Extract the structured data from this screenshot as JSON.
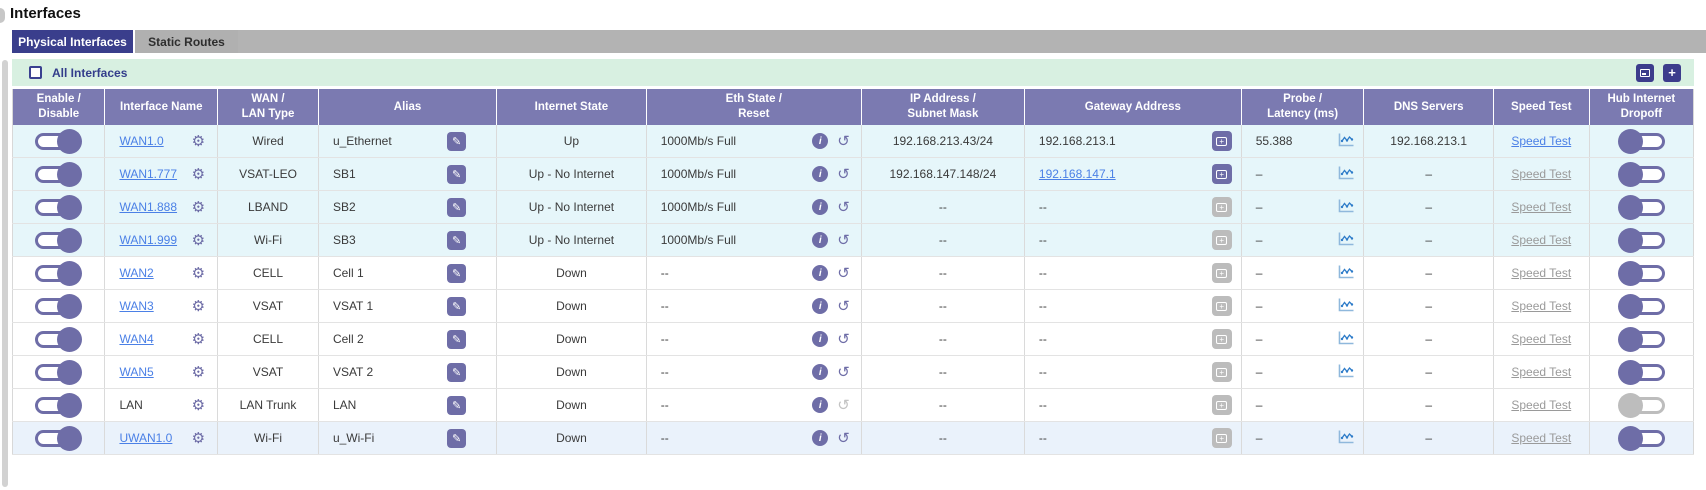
{
  "page": {
    "title": "Interfaces"
  },
  "tabs": [
    {
      "label": "Physical Interfaces",
      "active": true
    },
    {
      "label": "Static Routes",
      "active": false
    }
  ],
  "toolbar": {
    "all_interfaces_label": "All Interfaces",
    "checkbox_checked": false,
    "buttons": [
      {
        "name": "gallery-view-button",
        "icon": "image-icon"
      },
      {
        "name": "add-interface-button",
        "icon": "plus-icon",
        "glyph": "+"
      }
    ]
  },
  "colors": {
    "active_tab": "#3a3e8c",
    "header_purple": "#7b7ab1",
    "accent_purple": "#6e6da7",
    "toolbar_green": "#d8f0e1",
    "link_blue": "#4b80e6",
    "row_cyan": "#e6f6fa",
    "row_blue": "#eaf2fb"
  },
  "table": {
    "speed_test_label": "Speed Test",
    "columns": [
      "Enable /\nDisable",
      "Interface Name",
      "WAN /\nLAN Type",
      "Alias",
      "Internet State",
      "Eth State /\nReset",
      "IP Address /\nSubnet Mask",
      "Gateway Address",
      "Probe /\nLatency (ms)",
      "DNS Servers",
      "Speed Test",
      "Hub Internet\nDropoff"
    ],
    "rows": [
      {
        "enable_on": true,
        "name": "WAN1.0",
        "name_link": true,
        "type": "Wired",
        "alias": "u_Ethernet",
        "internet_state": "Up",
        "eth_state": "1000Mb/s Full",
        "reset_enabled": true,
        "ip": "192.168.213.43/24",
        "gateway": "192.168.213.1",
        "gateway_link": false,
        "gateway_btn_enabled": true,
        "probe": "55.388",
        "probe_chart": true,
        "dns": "192.168.213.1",
        "speed_enabled": true,
        "hub_on": false,
        "hub_enabled": true,
        "bg": "cyan"
      },
      {
        "enable_on": true,
        "name": "WAN1.777",
        "name_link": true,
        "type": "VSAT-LEO",
        "alias": "SB1",
        "internet_state": "Up - No Internet",
        "eth_state": "1000Mb/s Full",
        "reset_enabled": true,
        "ip": "192.168.147.148/24",
        "gateway": "192.168.147.1",
        "gateway_link": true,
        "gateway_btn_enabled": true,
        "probe": "–",
        "probe_chart": true,
        "dns": "–",
        "speed_enabled": false,
        "hub_on": false,
        "hub_enabled": true,
        "bg": "cyan"
      },
      {
        "enable_on": true,
        "name": "WAN1.888",
        "name_link": true,
        "type": "LBAND",
        "alias": "SB2",
        "internet_state": "Up - No Internet",
        "eth_state": "1000Mb/s Full",
        "reset_enabled": true,
        "ip": "--",
        "gateway": "--",
        "gateway_link": false,
        "gateway_btn_enabled": false,
        "probe": "–",
        "probe_chart": true,
        "dns": "–",
        "speed_enabled": false,
        "hub_on": false,
        "hub_enabled": true,
        "bg": "cyan"
      },
      {
        "enable_on": true,
        "name": "WAN1.999",
        "name_link": true,
        "type": "Wi-Fi",
        "alias": "SB3",
        "internet_state": "Up - No Internet",
        "eth_state": "1000Mb/s Full",
        "reset_enabled": true,
        "ip": "--",
        "gateway": "--",
        "gateway_link": false,
        "gateway_btn_enabled": false,
        "probe": "–",
        "probe_chart": true,
        "dns": "–",
        "speed_enabled": false,
        "hub_on": false,
        "hub_enabled": true,
        "bg": "cyan"
      },
      {
        "enable_on": true,
        "name": "WAN2",
        "name_link": true,
        "type": "CELL",
        "alias": "Cell 1",
        "internet_state": "Down",
        "eth_state": "--",
        "reset_enabled": true,
        "ip": "--",
        "gateway": "--",
        "gateway_link": false,
        "gateway_btn_enabled": false,
        "probe": "–",
        "probe_chart": true,
        "dns": "–",
        "speed_enabled": false,
        "hub_on": false,
        "hub_enabled": true,
        "bg": "white"
      },
      {
        "enable_on": true,
        "name": "WAN3",
        "name_link": true,
        "type": "VSAT",
        "alias": "VSAT 1",
        "internet_state": "Down",
        "eth_state": "--",
        "reset_enabled": true,
        "ip": "--",
        "gateway": "--",
        "gateway_link": false,
        "gateway_btn_enabled": false,
        "probe": "–",
        "probe_chart": true,
        "dns": "–",
        "speed_enabled": false,
        "hub_on": false,
        "hub_enabled": true,
        "bg": "white"
      },
      {
        "enable_on": true,
        "name": "WAN4",
        "name_link": true,
        "type": "CELL",
        "alias": "Cell 2",
        "internet_state": "Down",
        "eth_state": "--",
        "reset_enabled": true,
        "ip": "--",
        "gateway": "--",
        "gateway_link": false,
        "gateway_btn_enabled": false,
        "probe": "–",
        "probe_chart": true,
        "dns": "–",
        "speed_enabled": false,
        "hub_on": false,
        "hub_enabled": true,
        "bg": "white"
      },
      {
        "enable_on": true,
        "name": "WAN5",
        "name_link": true,
        "type": "VSAT",
        "alias": "VSAT 2",
        "internet_state": "Down",
        "eth_state": "--",
        "reset_enabled": true,
        "ip": "--",
        "gateway": "--",
        "gateway_link": false,
        "gateway_btn_enabled": false,
        "probe": "–",
        "probe_chart": true,
        "dns": "–",
        "speed_enabled": false,
        "hub_on": false,
        "hub_enabled": true,
        "bg": "white"
      },
      {
        "enable_on": true,
        "name": "LAN",
        "name_link": false,
        "type": "LAN Trunk",
        "alias": "LAN",
        "internet_state": "Down",
        "eth_state": "--",
        "reset_enabled": false,
        "ip": "--",
        "gateway": "--",
        "gateway_link": false,
        "gateway_btn_enabled": false,
        "probe": "–",
        "probe_chart": false,
        "dns": "–",
        "speed_enabled": false,
        "hub_on": false,
        "hub_enabled": false,
        "bg": "white"
      },
      {
        "enable_on": true,
        "name": "UWAN1.0",
        "name_link": true,
        "type": "Wi-Fi",
        "alias": "u_Wi-Fi",
        "internet_state": "Down",
        "eth_state": "--",
        "reset_enabled": true,
        "ip": "--",
        "gateway": "--",
        "gateway_link": false,
        "gateway_btn_enabled": false,
        "probe": "–",
        "probe_chart": true,
        "dns": "–",
        "speed_enabled": false,
        "hub_on": false,
        "hub_enabled": true,
        "bg": "blue"
      }
    ]
  }
}
